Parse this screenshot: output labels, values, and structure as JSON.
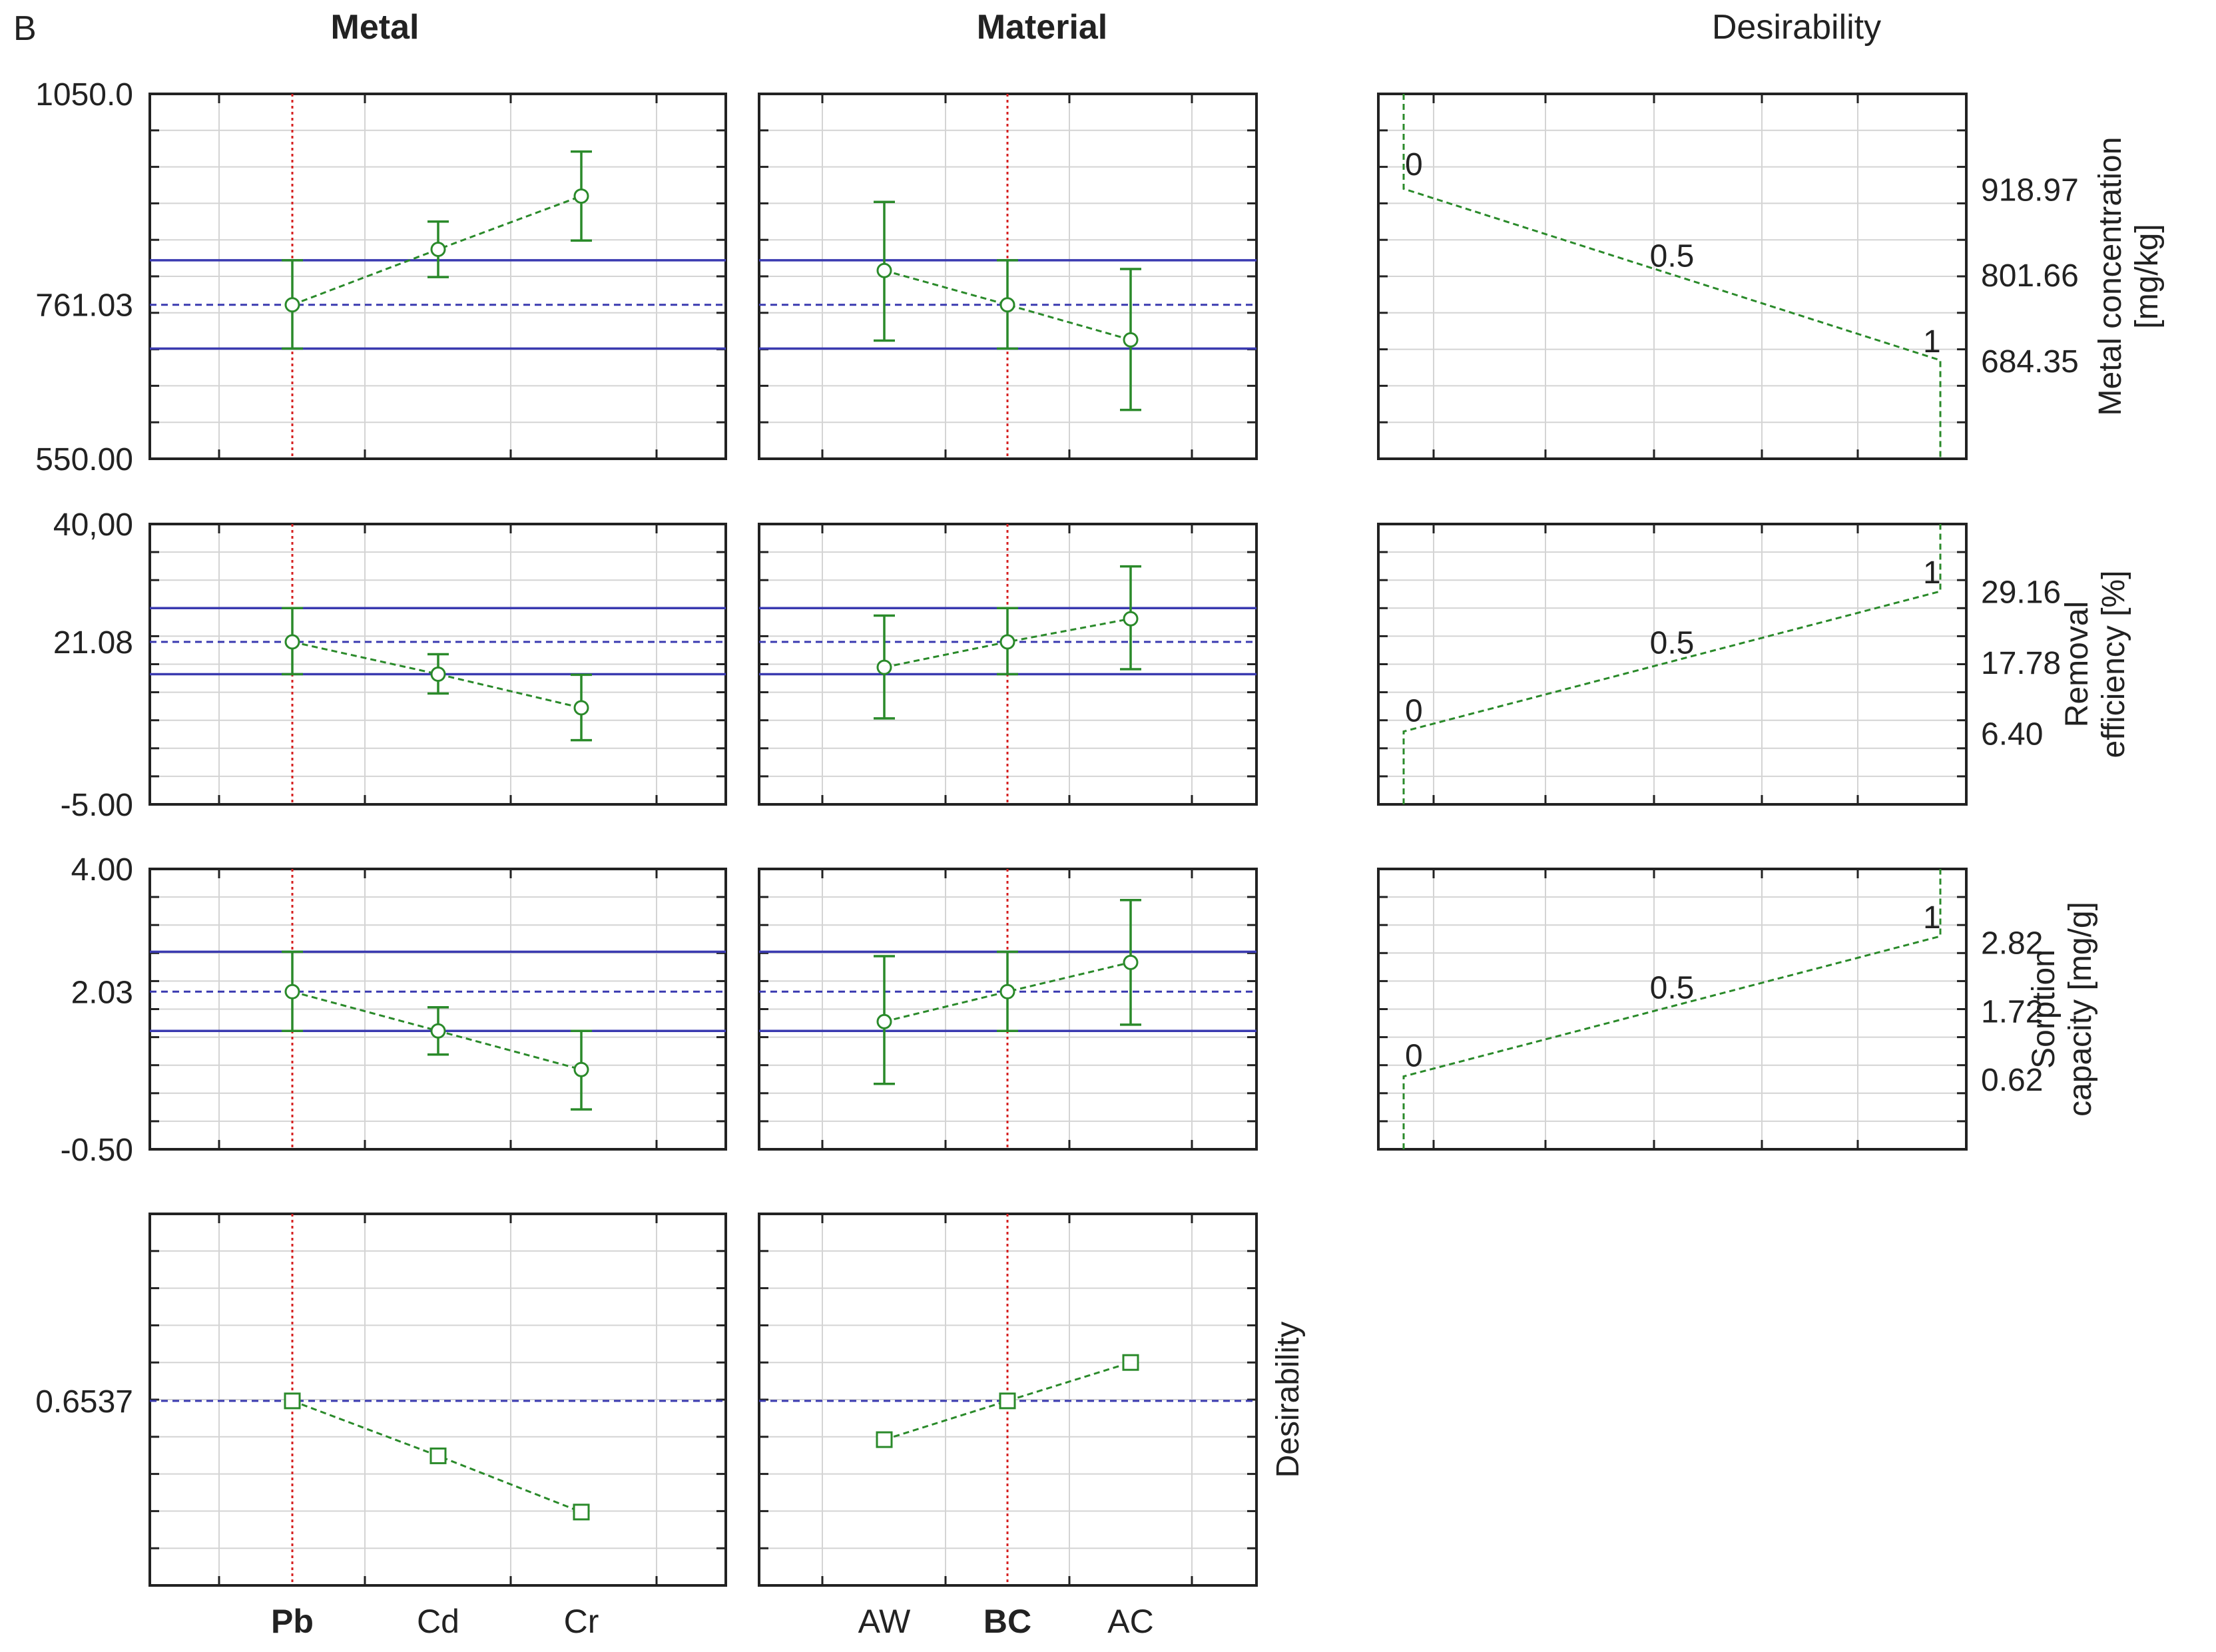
{
  "panel_letter": "B",
  "colors": {
    "frame": "#222222",
    "grid": "#d4d4d4",
    "series": "#2a8a2a",
    "limit_line": "#3a3ab0",
    "current_line": "#d62020",
    "text": "#222222"
  },
  "columns": {
    "metal": {
      "title": "Metal",
      "categories": [
        "Pb",
        "Cd",
        "Cr"
      ],
      "selected": "Pb"
    },
    "material": {
      "title": "Material",
      "categories": [
        "AW",
        "BC",
        "AC"
      ],
      "selected": "BC"
    },
    "desirability_title": "Desirability"
  },
  "desirability_row_label": "Desirability",
  "chart_data": [
    {
      "type": "line",
      "name": "metal-concentration",
      "ylabel": [
        "Metal concentration",
        "[mg/kg]"
      ],
      "ylim": [
        550,
        1050
      ],
      "ytick_labels": [
        "1050.0",
        "761.03",
        "550.00"
      ],
      "ytick_values": [
        1050,
        761.03,
        550
      ],
      "current_value": 761.03,
      "ci_band": [
        701,
        822
      ],
      "metal": {
        "categories": [
          "Pb",
          "Cd",
          "Cr"
        ],
        "mean": [
          761.03,
          837,
          910
        ],
        "lower": [
          701,
          799,
          849
        ],
        "upper": [
          822,
          875,
          971
        ]
      },
      "material": {
        "categories": [
          "AW",
          "BC",
          "AC"
        ],
        "mean": [
          808,
          761.03,
          713
        ],
        "lower": [
          712,
          701,
          617
        ],
        "upper": [
          902,
          822,
          810
        ]
      },
      "desirability_function": {
        "points": [
          [
            0,
            0
          ],
          [
            0.05,
            918.97
          ],
          [
            0.5,
            801.66
          ],
          [
            0.95,
            684.35
          ],
          [
            1,
            684.35
          ]
        ],
        "labels": [
          "0",
          "0.5",
          "1"
        ],
        "value_labels": [
          "918.97",
          "801.66",
          "684.35"
        ],
        "value_label_positions": [
          918.97,
          801.66,
          684.35
        ]
      }
    },
    {
      "type": "line",
      "name": "removal-efficiency",
      "ylabel": [
        "Removal",
        "efficiency [%]"
      ],
      "ylim": [
        -5,
        40
      ],
      "ytick_labels": [
        "40,00",
        "21.08",
        "-5.00"
      ],
      "ytick_values": [
        40,
        21.08,
        -5
      ],
      "current_value": 21.08,
      "ci_band": [
        15.9,
        26.5
      ],
      "metal": {
        "categories": [
          "Pb",
          "Cd",
          "Cr"
        ],
        "mean": [
          21.08,
          15.9,
          10.5
        ],
        "lower": [
          15.9,
          12.8,
          5.3
        ],
        "upper": [
          26.5,
          19.1,
          15.8
        ]
      },
      "material": {
        "categories": [
          "AW",
          "BC",
          "AC"
        ],
        "mean": [
          17.0,
          21.08,
          24.8
        ],
        "lower": [
          8.8,
          15.9,
          16.7
        ],
        "upper": [
          25.3,
          26.5,
          33.2
        ]
      },
      "desirability_function": {
        "labels": [
          "0",
          "0.5",
          "1"
        ],
        "value_labels": [
          "29.16",
          "17.78",
          "6.40"
        ],
        "value_label_positions": [
          29.16,
          17.78,
          6.4
        ]
      }
    },
    {
      "type": "line",
      "name": "sorption-capacity",
      "ylabel": [
        "Sorption",
        "capacity [mg/g]"
      ],
      "ylim": [
        -0.5,
        4
      ],
      "ytick_labels": [
        "4.00",
        "2.03",
        "-0.50"
      ],
      "ytick_values": [
        4,
        2.03,
        -0.5
      ],
      "current_value": 2.03,
      "ci_band": [
        1.4,
        2.67
      ],
      "metal": {
        "categories": [
          "Pb",
          "Cd",
          "Cr"
        ],
        "mean": [
          2.03,
          1.4,
          0.78
        ],
        "lower": [
          1.4,
          1.02,
          0.14
        ],
        "upper": [
          2.67,
          1.78,
          1.4
        ]
      },
      "material": {
        "categories": [
          "AW",
          "BC",
          "AC"
        ],
        "mean": [
          1.55,
          2.03,
          2.5
        ],
        "lower": [
          0.55,
          1.4,
          1.5
        ],
        "upper": [
          2.6,
          2.67,
          3.5
        ]
      },
      "desirability_function": {
        "labels": [
          "0",
          "0.5",
          "1"
        ],
        "value_labels": [
          "2.82",
          "1.72",
          "0.62"
        ],
        "value_label_positions": [
          2.82,
          1.72,
          0.62
        ]
      }
    },
    {
      "type": "line",
      "name": "overall-desirability",
      "ylabel": [
        "Desirability"
      ],
      "ylim": [
        0.46,
        0.85
      ],
      "ytick_labels": [
        "0.6537"
      ],
      "ytick_values": [
        0.6537
      ],
      "current_value": 0.6537,
      "metal": {
        "categories": [
          "Pb",
          "Cd",
          "Cr"
        ],
        "values": [
          0.6537,
          0.596,
          0.537
        ]
      },
      "material": {
        "categories": [
          "AW",
          "BC",
          "AC"
        ],
        "values": [
          0.613,
          0.6537,
          0.694
        ]
      }
    }
  ]
}
